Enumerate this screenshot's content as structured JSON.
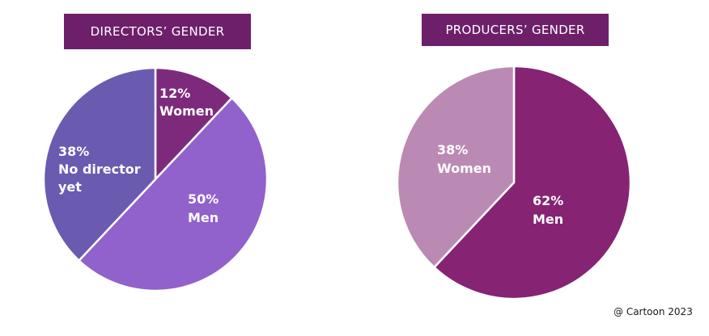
{
  "chart_data": [
    {
      "type": "pie",
      "title": "DIRECTORS’ GENDER",
      "slices": [
        {
          "label": "Women",
          "value": 12,
          "value_label": "12%",
          "color": "#7d2a7d"
        },
        {
          "label": "Men",
          "value": 50,
          "value_label": "50%",
          "color": "#9161cc"
        },
        {
          "label": "No director yet",
          "value": 38,
          "value_label": "38%",
          "color": "#6a5bb0"
        }
      ],
      "title_background": "#6e1f6a"
    },
    {
      "type": "pie",
      "title": "PRODUCERS’ GENDER",
      "slices": [
        {
          "label": "Men",
          "value": 62,
          "value_label": "62%",
          "color": "#862372"
        },
        {
          "label": "Women",
          "value": 38,
          "value_label": "38%",
          "color": "#bb8ab4"
        }
      ],
      "title_background": "#6e1f6a"
    }
  ],
  "footer": {
    "source": "@ Cartoon 2023"
  }
}
